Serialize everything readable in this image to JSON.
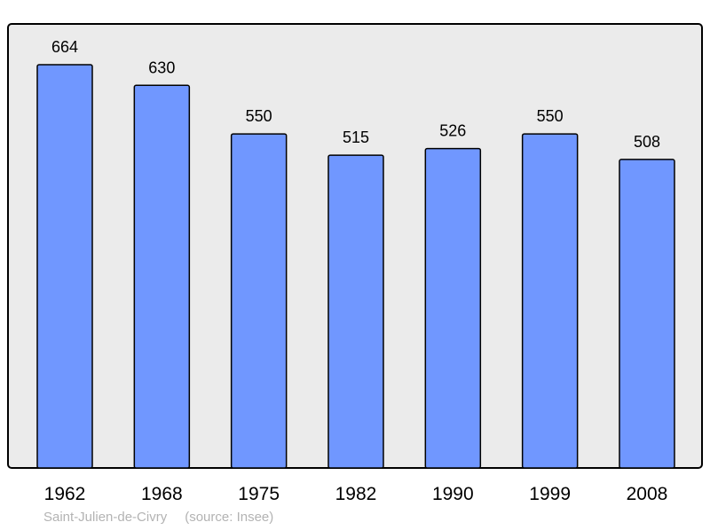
{
  "chart_data": {
    "type": "bar",
    "categories": [
      "1962",
      "1968",
      "1975",
      "1982",
      "1990",
      "1999",
      "2008"
    ],
    "values": [
      664,
      630,
      550,
      515,
      526,
      550,
      508
    ],
    "title": "",
    "xlabel": "",
    "ylabel": "",
    "ylim": [
      0,
      730
    ],
    "grid": false,
    "data_labels": true,
    "colors": {
      "bar": "#7097ff",
      "plot_background": "#ebebeb",
      "frame": "#000000",
      "footer_text": "#b3b3b3"
    }
  },
  "footer": {
    "place": "Saint-Julien-de-Civry",
    "source": "(source: Insee)"
  }
}
